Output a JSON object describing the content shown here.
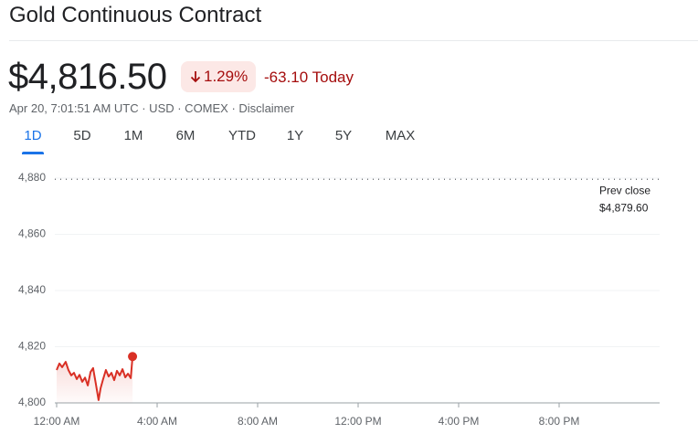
{
  "header": {
    "title": "Gold Continuous Contract",
    "price": "$4,816.50",
    "change_percent": "1.29%",
    "change_today": "-63.10 Today",
    "info": "Apr 20, 7:01:51 AM UTC · USD · COMEX · Disclaimer"
  },
  "tabs": {
    "items": [
      "1D",
      "5D",
      "1M",
      "6M",
      "YTD",
      "1Y",
      "5Y",
      "MAX"
    ],
    "selected": 0
  },
  "chart_data": {
    "type": "line",
    "x": [
      0,
      0.11,
      0.22,
      0.36,
      0.47,
      0.58,
      0.69,
      0.8,
      0.91,
      1.02,
      1.13,
      1.24,
      1.35,
      1.45,
      1.56,
      1.67,
      1.75,
      1.85,
      1.96,
      2.07,
      2.18,
      2.29,
      2.4,
      2.51,
      2.62,
      2.73,
      2.84,
      2.95,
      3.02
    ],
    "series": [
      {
        "color": "#d93025",
        "values": [
          4811.7,
          4814,
          4812.7,
          4814.6,
          4811.7,
          4809.8,
          4810.7,
          4808.5,
          4810,
          4807.5,
          4809,
          4806.2,
          4811,
          4812.4,
          4806.8,
          4801,
          4805.2,
          4808.5,
          4811.7,
          4809.4,
          4810.7,
          4808.1,
          4811.4,
          4809.8,
          4812,
          4809.1,
          4810.4,
          4808.8,
          4816.5
        ]
      }
    ],
    "xlim": [
      0,
      24
    ],
    "xticks": [
      {
        "value": 0,
        "label": "12:00 AM"
      },
      {
        "value": 4,
        "label": "4:00 AM"
      },
      {
        "value": 8,
        "label": "8:00 AM"
      },
      {
        "value": 12,
        "label": "12:00 PM"
      },
      {
        "value": 16,
        "label": "4:00 PM"
      },
      {
        "value": 20,
        "label": "8:00 PM"
      }
    ],
    "ylim": [
      4800,
      4880
    ],
    "yticks": [
      {
        "value": 4800,
        "label": "4,800"
      },
      {
        "value": 4820,
        "label": "4,820"
      },
      {
        "value": 4840,
        "label": "4,840"
      },
      {
        "value": 4860,
        "label": "4,860"
      },
      {
        "value": 4880,
        "label": "4,880"
      }
    ],
    "grid": true,
    "prev_close": {
      "value": 4879.6,
      "label": "Prev close",
      "value_label": "$4,879.60"
    }
  }
}
